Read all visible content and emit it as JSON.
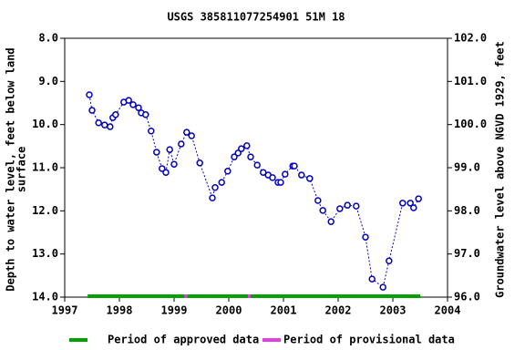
{
  "chart_data": {
    "type": "scatter",
    "title": "USGS 385811077254901 51M 18",
    "ylabel": [
      "Depth to water level, feet below land",
      "surface"
    ],
    "y2label": "Groundwater level above NGVD 1929, feet",
    "x": [
      1997.45,
      1997.5,
      1997.62,
      1997.73,
      1997.83,
      1997.88,
      1997.93,
      1998.08,
      1998.17,
      1998.25,
      1998.35,
      1998.4,
      1998.48,
      1998.58,
      1998.68,
      1998.78,
      1998.85,
      1998.92,
      1999.0,
      1999.13,
      1999.23,
      1999.32,
      1999.47,
      1999.7,
      1999.75,
      1999.87,
      1999.98,
      2000.1,
      2000.17,
      2000.23,
      2000.33,
      2000.4,
      2000.52,
      2000.63,
      2000.72,
      2000.8,
      2000.9,
      2000.95,
      2001.03,
      2001.17,
      2001.2,
      2001.33,
      2001.48,
      2001.63,
      2001.72,
      2001.87,
      2002.03,
      2002.17,
      2002.33,
      2002.5,
      2002.62,
      2002.82,
      2002.93,
      2003.18,
      2003.32,
      2003.38,
      2003.47
    ],
    "series": [
      {
        "color": "#0000c0",
        "values": [
          9.31,
          9.67,
          9.96,
          10.01,
          10.05,
          9.84,
          9.77,
          9.48,
          9.44,
          9.54,
          9.61,
          9.73,
          9.77,
          10.15,
          10.64,
          11.02,
          11.11,
          10.58,
          10.92,
          10.45,
          10.18,
          10.26,
          10.89,
          11.7,
          11.46,
          11.34,
          11.08,
          10.75,
          10.66,
          10.56,
          10.49,
          10.75,
          10.94,
          11.11,
          11.17,
          11.23,
          11.34,
          11.34,
          11.15,
          10.96,
          10.96,
          11.17,
          11.25,
          11.76,
          11.99,
          12.25,
          11.95,
          11.87,
          11.89,
          12.61,
          13.58,
          13.77,
          13.16,
          11.82,
          11.82,
          11.93,
          11.72
        ]
      }
    ],
    "periods": [
      {
        "name": "Period of approved data",
        "color": "#00a000",
        "ranges": [
          [
            1997.42,
            1999.19
          ],
          [
            1999.24,
            2000.35
          ],
          [
            2000.4,
            2003.5
          ]
        ]
      },
      {
        "name": "Period of provisional data",
        "color": "#e040e0",
        "ranges": [
          [
            1999.19,
            1999.24
          ],
          [
            2000.35,
            2000.4
          ]
        ]
      }
    ],
    "xlim": [
      1997,
      2004
    ],
    "xticks": [
      1997,
      1998,
      1999,
      2000,
      2001,
      2002,
      2003,
      2004
    ],
    "ylim": [
      14,
      8
    ],
    "yticks": [
      {
        "value": 8,
        "label": "8.0"
      },
      {
        "value": 9,
        "label": "9.0"
      },
      {
        "value": 10,
        "label": "10.0"
      },
      {
        "value": 11,
        "label": "11.0"
      },
      {
        "value": 12,
        "label": "12.0"
      },
      {
        "value": 13,
        "label": "13.0"
      },
      {
        "value": 14,
        "label": "14.0"
      }
    ],
    "y2lim": [
      96,
      102
    ],
    "y2ticks": [
      {
        "value": 102,
        "label": "102.0"
      },
      {
        "value": 101,
        "label": "101.0"
      },
      {
        "value": 100,
        "label": "100.0"
      },
      {
        "value": 99,
        "label": "99.0"
      },
      {
        "value": 98,
        "label": "98.0"
      },
      {
        "value": 97,
        "label": "97.0"
      },
      {
        "value": 96,
        "label": "96.0"
      }
    ]
  }
}
